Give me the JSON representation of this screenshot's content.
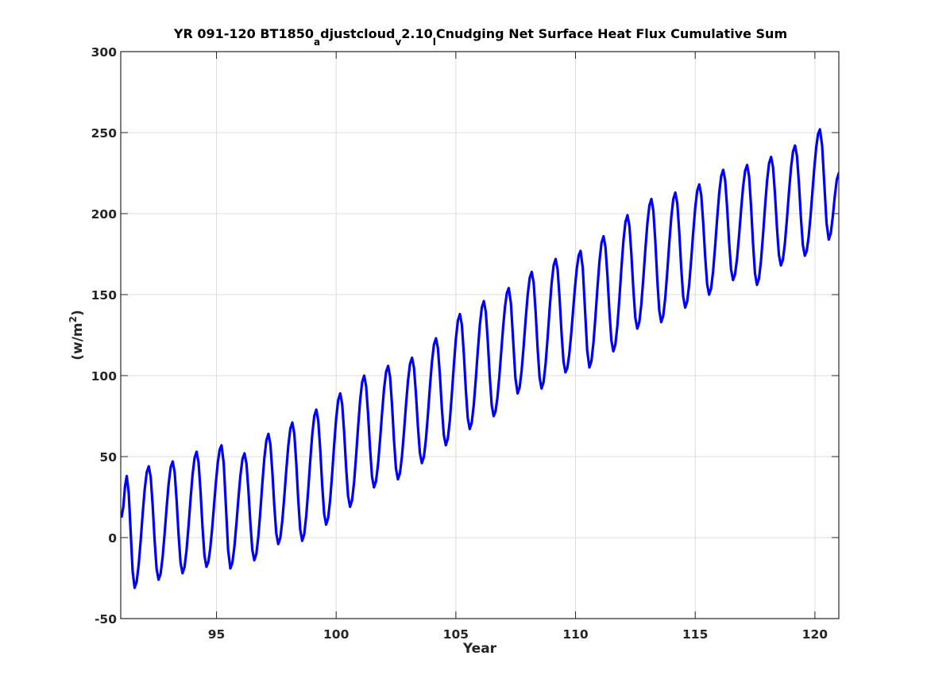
{
  "chart_data": {
    "type": "line",
    "title_parts": {
      "t1": "YR 091-120 BT1850",
      "s1": "a",
      "t2": "djustcloud",
      "s2": "v",
      "t3": "2.10",
      "s3": "l",
      "t4": "Cnudging Net Surface Heat Flux  Cumulative Sum"
    },
    "xlabel": "Year",
    "ylabel_parts": {
      "base": "(w/m",
      "sup": "2",
      "close": ")"
    },
    "xlim": [
      91,
      121
    ],
    "ylim": [
      -50,
      300
    ],
    "xticks": [
      95,
      100,
      105,
      110,
      115,
      120
    ],
    "xtick_labels": [
      "95",
      "100",
      "105",
      "110",
      "115",
      "120"
    ],
    "yticks": [
      -50,
      0,
      50,
      100,
      150,
      200,
      250,
      300
    ],
    "ytick_labels": [
      "-50",
      "0",
      "50",
      "100",
      "150",
      "200",
      "250",
      "300"
    ],
    "grid": true,
    "series_color": "#0000ff",
    "series": [
      {
        "monthly_cycle_note": "values per year: start, peak, end-of-year trough",
        "peaks": [
          {
            "x": 91.25,
            "y": 38
          },
          {
            "x": 92.17,
            "y": 44
          },
          {
            "x": 93.17,
            "y": 47
          },
          {
            "x": 94.17,
            "y": 53
          },
          {
            "x": 95.21,
            "y": 57
          },
          {
            "x": 96.17,
            "y": 52
          },
          {
            "x": 97.17,
            "y": 64
          },
          {
            "x": 98.17,
            "y": 71
          },
          {
            "x": 99.17,
            "y": 79
          },
          {
            "x": 100.17,
            "y": 89
          },
          {
            "x": 101.17,
            "y": 100
          },
          {
            "x": 102.17,
            "y": 106
          },
          {
            "x": 103.17,
            "y": 111
          },
          {
            "x": 104.17,
            "y": 123
          },
          {
            "x": 105.17,
            "y": 138
          },
          {
            "x": 106.17,
            "y": 146
          },
          {
            "x": 107.21,
            "y": 154
          },
          {
            "x": 108.17,
            "y": 164
          },
          {
            "x": 109.17,
            "y": 172
          },
          {
            "x": 110.21,
            "y": 177
          },
          {
            "x": 111.17,
            "y": 186
          },
          {
            "x": 112.17,
            "y": 199
          },
          {
            "x": 113.17,
            "y": 209
          },
          {
            "x": 114.17,
            "y": 213
          },
          {
            "x": 115.17,
            "y": 218
          },
          {
            "x": 116.17,
            "y": 227
          },
          {
            "x": 117.17,
            "y": 230
          },
          {
            "x": 118.17,
            "y": 235
          },
          {
            "x": 119.17,
            "y": 242
          },
          {
            "x": 120.21,
            "y": 252
          }
        ],
        "troughs": [
          {
            "x": 91.58,
            "y": -31
          },
          {
            "x": 92.58,
            "y": -26
          },
          {
            "x": 93.58,
            "y": -22
          },
          {
            "x": 94.58,
            "y": -18
          },
          {
            "x": 95.58,
            "y": -19
          },
          {
            "x": 96.58,
            "y": -14
          },
          {
            "x": 97.58,
            "y": -4
          },
          {
            "x": 98.58,
            "y": -2
          },
          {
            "x": 99.58,
            "y": 8
          },
          {
            "x": 100.58,
            "y": 19
          },
          {
            "x": 101.58,
            "y": 31
          },
          {
            "x": 102.58,
            "y": 36
          },
          {
            "x": 103.58,
            "y": 46
          },
          {
            "x": 104.58,
            "y": 57
          },
          {
            "x": 105.58,
            "y": 67
          },
          {
            "x": 106.58,
            "y": 75
          },
          {
            "x": 107.58,
            "y": 89
          },
          {
            "x": 108.58,
            "y": 92
          },
          {
            "x": 109.58,
            "y": 102
          },
          {
            "x": 110.58,
            "y": 105
          },
          {
            "x": 111.58,
            "y": 115
          },
          {
            "x": 112.58,
            "y": 129
          },
          {
            "x": 113.58,
            "y": 133
          },
          {
            "x": 114.58,
            "y": 142
          },
          {
            "x": 115.58,
            "y": 150
          },
          {
            "x": 116.58,
            "y": 159
          },
          {
            "x": 117.58,
            "y": 156
          },
          {
            "x": 118.58,
            "y": 168
          },
          {
            "x": 119.58,
            "y": 174
          },
          {
            "x": 120.58,
            "y": 184
          }
        ],
        "start": {
          "x": 91.04,
          "y": 13
        },
        "end": {
          "x": 121.0,
          "y": 225
        }
      }
    ]
  }
}
